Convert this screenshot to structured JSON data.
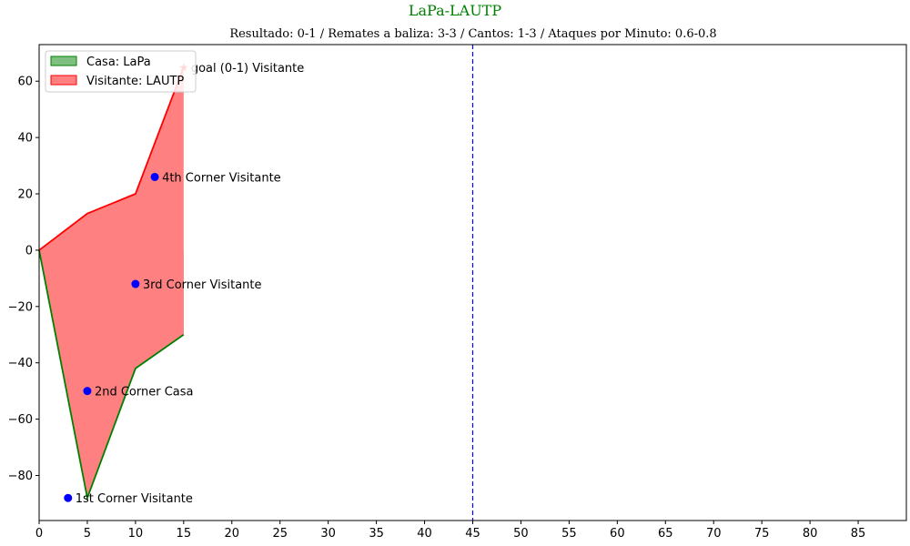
{
  "chart_data": {
    "type": "area",
    "title": "LaPa-LAUTP",
    "subtitle": "Resultado: 0-1 / Remates a baliza: 3-3 / Cantos: 1-3 / Ataques por Minuto: 0.6-0.8",
    "xlabel": "",
    "ylabel": "",
    "xlim": [
      0,
      90
    ],
    "ylim": [
      -96,
      73
    ],
    "x_ticks": [
      0,
      5,
      10,
      15,
      20,
      25,
      30,
      35,
      40,
      45,
      50,
      55,
      60,
      65,
      70,
      75,
      80,
      85
    ],
    "y_ticks": [
      -80,
      -60,
      -40,
      -20,
      0,
      20,
      40,
      60
    ],
    "grid": false,
    "legend_position": "top-left",
    "series": [
      {
        "name": "Casa: LaPa",
        "color": "#008000",
        "x": [
          0,
          5,
          10,
          15
        ],
        "values": [
          0,
          -88,
          -42,
          -30
        ]
      },
      {
        "name": "Visitante: LAUTP",
        "color": "#ff0000",
        "x": [
          0,
          5,
          10,
          15
        ],
        "values": [
          0,
          13,
          20,
          65
        ]
      }
    ],
    "vline": {
      "x": 45,
      "color": "#0000ff",
      "style": "dashed"
    },
    "events": [
      {
        "x": 3,
        "y": -88,
        "label": "1st Corner Visitante",
        "marker": "circle",
        "color": "#0000ff"
      },
      {
        "x": 5,
        "y": -50,
        "label": "2nd Corner Casa",
        "marker": "circle",
        "color": "#0000ff"
      },
      {
        "x": 10,
        "y": -12,
        "label": "3rd Corner Visitante",
        "marker": "circle",
        "color": "#0000ff"
      },
      {
        "x": 12,
        "y": 26,
        "label": "4th Corner Visitante",
        "marker": "circle",
        "color": "#0000ff"
      },
      {
        "x": 15,
        "y": 65,
        "label": "goal (0-1) Visitante",
        "marker": "star",
        "color": "#ff0000"
      }
    ]
  }
}
